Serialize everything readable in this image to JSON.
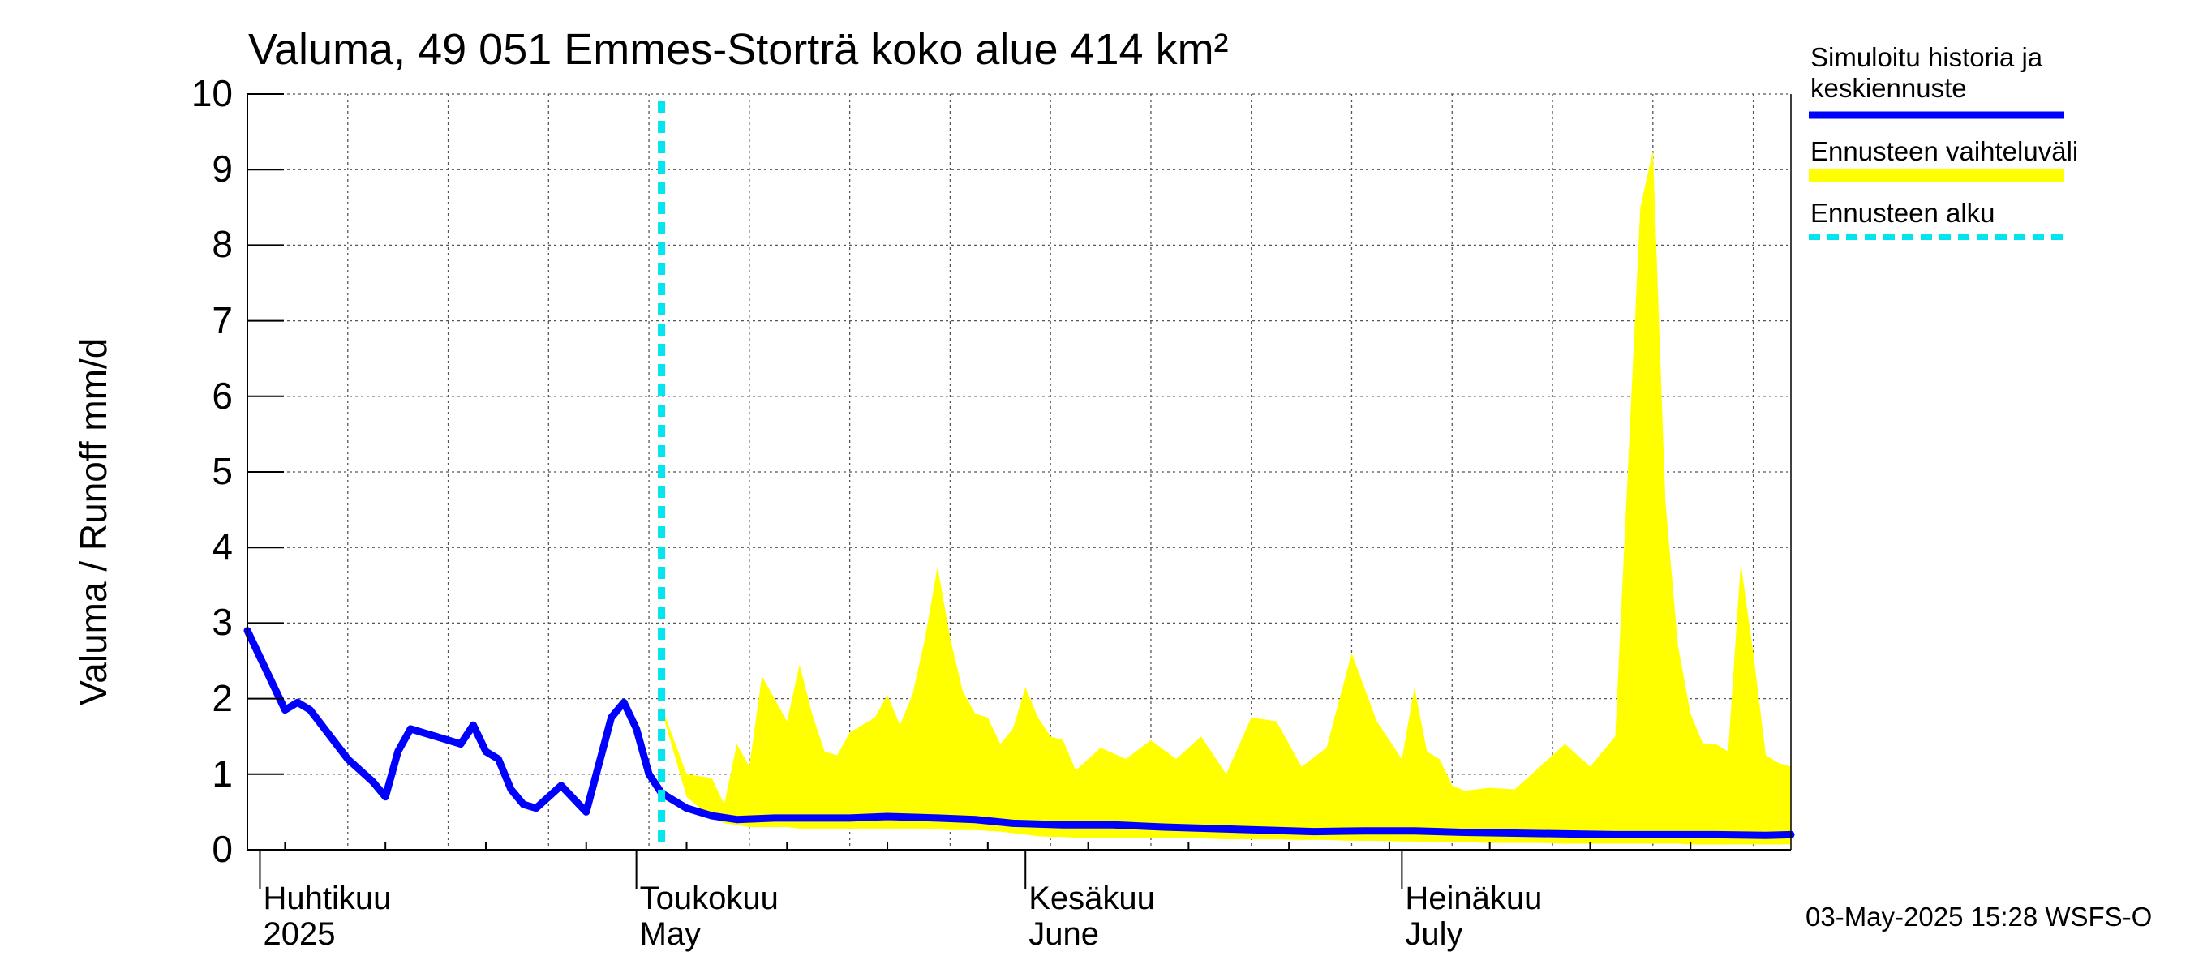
{
  "chart_data": {
    "type": "area",
    "title": "Valuma, 49 051 Emmes-Storträ koko alue 414 km²",
    "ylabel": "Valuma / Runoff     mm/d",
    "ylim": [
      0,
      10
    ],
    "yticks": [
      "0",
      "1",
      "2",
      "3",
      "4",
      "5",
      "6",
      "7",
      "8",
      "9",
      "10"
    ],
    "grid": true,
    "x_range": [
      "2025-03-31",
      "2025-08-01"
    ],
    "month_labels": [
      {
        "fi": "Huhtikuu",
        "en": "2025",
        "date": "2025-04-01"
      },
      {
        "fi": "Toukokuu",
        "en": "May",
        "date": "2025-05-01"
      },
      {
        "fi": "Kesäkuu",
        "en": "June",
        "date": "2025-06-01"
      },
      {
        "fi": "Heinäkuu",
        "en": "July",
        "date": "2025-07-01"
      }
    ],
    "legend": [
      {
        "label": "Simuloitu historia ja keskiennuste",
        "color": "#0000ff",
        "style": "solid"
      },
      {
        "label": "Ennusteen vaihteluväli",
        "color": "#ffff00",
        "style": "band"
      },
      {
        "label": "Ennusteen alku",
        "color": "#00e5ee",
        "style": "dashed"
      }
    ],
    "forecast_start": "2025-05-03",
    "series": [
      {
        "name": "Simuloitu historia ja keskiennuste",
        "color": "#0000ff",
        "dates": [
          "2025-03-31",
          "2025-04-03",
          "2025-04-04",
          "2025-04-05",
          "2025-04-08",
          "2025-04-10",
          "2025-04-11",
          "2025-04-12",
          "2025-04-13",
          "2025-04-14",
          "2025-04-15",
          "2025-04-16",
          "2025-04-17",
          "2025-04-18",
          "2025-04-19",
          "2025-04-20",
          "2025-04-21",
          "2025-04-22",
          "2025-04-23",
          "2025-04-25",
          "2025-04-27",
          "2025-04-29",
          "2025-04-30",
          "2025-05-01",
          "2025-05-02",
          "2025-05-03",
          "2025-05-05",
          "2025-05-07",
          "2025-05-09",
          "2025-05-12",
          "2025-05-15",
          "2025-05-18",
          "2025-05-21",
          "2025-05-25",
          "2025-05-28",
          "2025-05-31",
          "2025-06-04",
          "2025-06-08",
          "2025-06-12",
          "2025-06-16",
          "2025-06-20",
          "2025-06-24",
          "2025-06-28",
          "2025-07-02",
          "2025-07-06",
          "2025-07-10",
          "2025-07-14",
          "2025-07-18",
          "2025-07-22",
          "2025-07-26",
          "2025-07-30",
          "2025-08-01"
        ],
        "values": [
          2.9,
          1.85,
          1.95,
          1.85,
          1.2,
          0.9,
          0.7,
          1.3,
          1.6,
          1.55,
          1.5,
          1.45,
          1.4,
          1.65,
          1.3,
          1.2,
          0.8,
          0.6,
          0.55,
          0.85,
          0.5,
          1.75,
          1.95,
          1.6,
          1.0,
          0.75,
          0.55,
          0.45,
          0.4,
          0.42,
          0.42,
          0.42,
          0.44,
          0.42,
          0.4,
          0.35,
          0.33,
          0.33,
          0.3,
          0.28,
          0.26,
          0.24,
          0.25,
          0.25,
          0.23,
          0.22,
          0.21,
          0.2,
          0.2,
          0.2,
          0.19,
          0.2
        ]
      },
      {
        "name": "Ennusteen vaihteluväli",
        "color": "#ffff00",
        "dates": [
          "2025-05-03",
          "2025-05-05",
          "2025-05-07",
          "2025-05-08",
          "2025-05-09",
          "2025-05-10",
          "2025-05-11",
          "2025-05-13",
          "2025-05-14",
          "2025-05-15",
          "2025-05-16",
          "2025-05-17",
          "2025-05-18",
          "2025-05-20",
          "2025-05-21",
          "2025-05-22",
          "2025-05-23",
          "2025-05-24",
          "2025-05-25",
          "2025-05-26",
          "2025-05-27",
          "2025-05-28",
          "2025-05-29",
          "2025-05-30",
          "2025-05-31",
          "2025-06-01",
          "2025-06-02",
          "2025-06-03",
          "2025-06-04",
          "2025-06-05",
          "2025-06-07",
          "2025-06-09",
          "2025-06-11",
          "2025-06-13",
          "2025-06-15",
          "2025-06-17",
          "2025-06-19",
          "2025-06-21",
          "2025-06-23",
          "2025-06-25",
          "2025-06-27",
          "2025-06-29",
          "2025-07-01",
          "2025-07-02",
          "2025-07-03",
          "2025-07-04",
          "2025-07-05",
          "2025-07-06",
          "2025-07-08",
          "2025-07-10",
          "2025-07-12",
          "2025-07-14",
          "2025-07-16",
          "2025-07-18",
          "2025-07-20",
          "2025-07-21",
          "2025-07-22",
          "2025-07-23",
          "2025-07-24",
          "2025-07-25",
          "2025-07-26",
          "2025-07-27",
          "2025-07-28",
          "2025-07-29",
          "2025-07-30",
          "2025-07-31",
          "2025-08-01"
        ],
        "upper": [
          1.9,
          1.0,
          0.95,
          0.6,
          1.4,
          1.1,
          2.3,
          1.7,
          2.45,
          1.8,
          1.3,
          1.25,
          1.55,
          1.75,
          2.05,
          1.65,
          2.05,
          2.8,
          3.75,
          2.8,
          2.1,
          1.8,
          1.75,
          1.4,
          1.6,
          2.15,
          1.75,
          1.5,
          1.45,
          1.05,
          1.35,
          1.2,
          1.45,
          1.2,
          1.5,
          1.0,
          1.75,
          1.7,
          1.1,
          1.35,
          2.6,
          1.7,
          1.2,
          2.15,
          1.3,
          1.2,
          0.85,
          0.78,
          0.82,
          0.8,
          1.1,
          1.4,
          1.1,
          1.5,
          8.5,
          9.25,
          4.6,
          2.7,
          1.8,
          1.4,
          1.4,
          1.3,
          3.8,
          2.6,
          1.25,
          1.15,
          1.1
        ],
        "lower": [
          1.85,
          0.7,
          0.42,
          0.35,
          0.33,
          0.3,
          0.3,
          0.3,
          0.28,
          0.28,
          0.28,
          0.28,
          0.28,
          0.28,
          0.28,
          0.28,
          0.28,
          0.28,
          0.27,
          0.26,
          0.26,
          0.26,
          0.25,
          0.24,
          0.22,
          0.2,
          0.18,
          0.17,
          0.17,
          0.16,
          0.15,
          0.15,
          0.15,
          0.15,
          0.15,
          0.14,
          0.14,
          0.14,
          0.13,
          0.13,
          0.12,
          0.12,
          0.11,
          0.11,
          0.1,
          0.1,
          0.1,
          0.1,
          0.09,
          0.09,
          0.09,
          0.08,
          0.08,
          0.08,
          0.08,
          0.08,
          0.08,
          0.08,
          0.07,
          0.07,
          0.07,
          0.07,
          0.07,
          0.07,
          0.07,
          0.07,
          0.07
        ]
      }
    ]
  },
  "footer": {
    "timestamp": "03-May-2025 15:28 WSFS-O"
  }
}
